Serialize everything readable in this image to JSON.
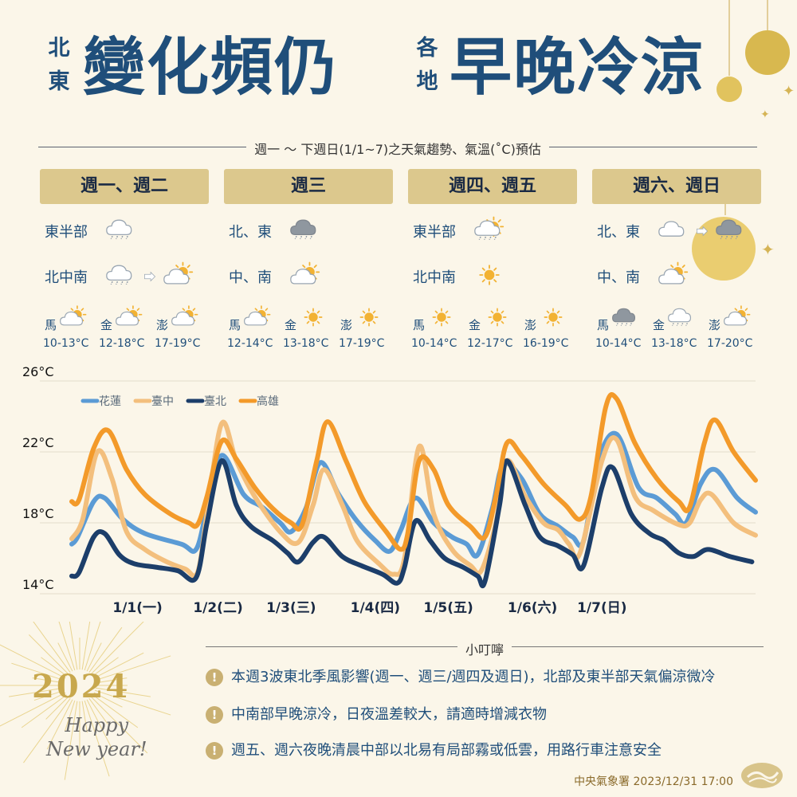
{
  "title": {
    "left_small_1": "北",
    "left_small_2": "東",
    "left_big": "變化頻仍",
    "right_small_1": "各",
    "right_small_2": "地",
    "right_big": "早晚冷涼"
  },
  "subtitle": "週一 ～ 下週日(1/1~7)之天氣趨勢、氣溫(˚C)預估",
  "days": [
    {
      "header": "週一、週二",
      "regions": [
        {
          "label": "東半部",
          "icons": [
            "rain-cloud-icon"
          ]
        },
        {
          "label": "北中南",
          "icons": [
            "rain-cloud-icon",
            "arrow-right-icon",
            "partly-sunny-icon"
          ]
        }
      ],
      "islands": [
        {
          "name": "馬",
          "icon": "partly-sunny-icon",
          "range": "10-13°C"
        },
        {
          "name": "金",
          "icon": "partly-sunny-icon",
          "range": "12-18°C"
        },
        {
          "name": "澎",
          "icon": "partly-sunny-icon",
          "range": "17-19°C"
        }
      ]
    },
    {
      "header": "週三",
      "regions": [
        {
          "label": "北、東",
          "icons": [
            "dark-rain-cloud-icon"
          ]
        },
        {
          "label": "中、南",
          "icons": [
            "partly-sunny-icon"
          ]
        }
      ],
      "islands": [
        {
          "name": "馬",
          "icon": "partly-sunny-icon",
          "range": "12-14°C"
        },
        {
          "name": "金",
          "icon": "sunny-icon",
          "range": "13-18°C"
        },
        {
          "name": "澎",
          "icon": "sunny-icon",
          "range": "17-19°C"
        }
      ]
    },
    {
      "header": "週四、週五",
      "regions": [
        {
          "label": "東半部",
          "icons": [
            "sun-rain-icon"
          ]
        },
        {
          "label": "北中南",
          "icons": [
            "sunny-icon"
          ]
        }
      ],
      "islands": [
        {
          "name": "馬",
          "icon": "sunny-icon",
          "range": "10-14°C"
        },
        {
          "name": "金",
          "icon": "sunny-icon",
          "range": "12-17°C"
        },
        {
          "name": "澎",
          "icon": "sunny-icon",
          "range": "16-19°C"
        }
      ]
    },
    {
      "header": "週六、週日",
      "regions": [
        {
          "label": "北、東",
          "icons": [
            "cloud-icon",
            "arrow-right-icon",
            "dark-rain-cloud-icon"
          ]
        },
        {
          "label": "中、南",
          "icons": [
            "partly-sunny-icon"
          ]
        }
      ],
      "islands": [
        {
          "name": "馬",
          "icon": "dark-rain-cloud-icon",
          "range": "10-14°C"
        },
        {
          "name": "金",
          "icon": "rain-cloud-icon",
          "range": "13-18°C"
        },
        {
          "name": "澎",
          "icon": "partly-sunny-icon",
          "range": "17-20°C"
        }
      ]
    }
  ],
  "chart_data": {
    "type": "line",
    "ylim": [
      14,
      26
    ],
    "yticks": [
      "26°C",
      "22°C",
      "18°C",
      "14°C"
    ],
    "ytick_values": [
      26,
      22,
      18,
      14
    ],
    "categories": [
      "1/1(一)",
      "1/2(二)",
      "1/3(三)",
      "1/4(四)",
      "1/5(五)",
      "1/6(六)",
      "1/7(日)"
    ],
    "category_x": [
      0.9,
      2.0,
      3.0,
      4.15,
      5.15,
      6.3,
      7.25
    ],
    "legend_placement": "top-left",
    "grid": true,
    "series": [
      {
        "name": "花蓮",
        "color": "#5b9bd5",
        "points": [
          [
            0,
            16.8
          ],
          [
            0.08,
            17.2
          ],
          [
            0.3,
            19.2
          ],
          [
            0.45,
            19.4
          ],
          [
            0.7,
            18.2
          ],
          [
            1.0,
            17.4
          ],
          [
            1.5,
            16.8
          ],
          [
            1.7,
            16.5
          ],
          [
            1.85,
            18.8
          ],
          [
            2.05,
            21.8
          ],
          [
            2.35,
            19.6
          ],
          [
            2.6,
            18.9
          ],
          [
            2.85,
            18.0
          ],
          [
            3.0,
            17.5
          ],
          [
            3.2,
            18.8
          ],
          [
            3.4,
            21.4
          ],
          [
            3.65,
            19.6
          ],
          [
            3.9,
            18.1
          ],
          [
            4.15,
            17.0
          ],
          [
            4.35,
            16.4
          ],
          [
            4.5,
            17.6
          ],
          [
            4.7,
            19.4
          ],
          [
            4.95,
            18.0
          ],
          [
            5.2,
            17.2
          ],
          [
            5.4,
            16.8
          ],
          [
            5.55,
            16.2
          ],
          [
            5.75,
            18.8
          ],
          [
            5.9,
            21.3
          ],
          [
            6.15,
            20.5
          ],
          [
            6.4,
            18.5
          ],
          [
            6.65,
            17.8
          ],
          [
            6.85,
            17.2
          ],
          [
            7.0,
            17.0
          ],
          [
            7.2,
            21.5
          ],
          [
            7.45,
            23.0
          ],
          [
            7.75,
            20.0
          ],
          [
            8.0,
            19.4
          ],
          [
            8.25,
            18.5
          ],
          [
            8.4,
            18.0
          ],
          [
            8.6,
            20.2
          ],
          [
            8.8,
            21.0
          ],
          [
            9.1,
            19.4
          ],
          [
            9.35,
            18.6
          ]
        ]
      },
      {
        "name": "臺中",
        "color": "#f3bf7d",
        "points": [
          [
            0,
            17.1
          ],
          [
            0.15,
            18.2
          ],
          [
            0.35,
            22.0
          ],
          [
            0.55,
            20.5
          ],
          [
            0.75,
            17.5
          ],
          [
            1.0,
            16.5
          ],
          [
            1.3,
            15.8
          ],
          [
            1.55,
            15.4
          ],
          [
            1.72,
            15.2
          ],
          [
            1.85,
            18.5
          ],
          [
            2.05,
            23.6
          ],
          [
            2.25,
            21.5
          ],
          [
            2.5,
            19.5
          ],
          [
            2.85,
            17.5
          ],
          [
            3.1,
            16.9
          ],
          [
            3.3,
            19.0
          ],
          [
            3.45,
            21.0
          ],
          [
            3.7,
            19.0
          ],
          [
            3.9,
            17.0
          ],
          [
            4.2,
            15.7
          ],
          [
            4.4,
            15.1
          ],
          [
            4.55,
            16.0
          ],
          [
            4.75,
            22.3
          ],
          [
            4.95,
            18.5
          ],
          [
            5.2,
            16.5
          ],
          [
            5.45,
            15.6
          ],
          [
            5.6,
            15.3
          ],
          [
            5.8,
            18.0
          ],
          [
            5.95,
            21.5
          ],
          [
            6.2,
            19.5
          ],
          [
            6.45,
            18.0
          ],
          [
            6.65,
            17.6
          ],
          [
            6.8,
            16.8
          ],
          [
            6.95,
            16.3
          ],
          [
            7.25,
            21.5
          ],
          [
            7.45,
            22.7
          ],
          [
            7.7,
            19.5
          ],
          [
            7.95,
            18.7
          ],
          [
            8.3,
            17.9
          ],
          [
            8.45,
            18.0
          ],
          [
            8.6,
            19.3
          ],
          [
            8.75,
            19.6
          ],
          [
            9.05,
            18.0
          ],
          [
            9.35,
            17.3
          ]
        ]
      },
      {
        "name": "臺北",
        "color": "#1c3e6a",
        "points": [
          [
            0,
            15.0
          ],
          [
            0.1,
            15.2
          ],
          [
            0.3,
            17.2
          ],
          [
            0.45,
            17.4
          ],
          [
            0.65,
            16.2
          ],
          [
            0.85,
            15.7
          ],
          [
            1.15,
            15.5
          ],
          [
            1.45,
            15.3
          ],
          [
            1.7,
            14.9
          ],
          [
            1.85,
            18.0
          ],
          [
            2.05,
            21.5
          ],
          [
            2.25,
            19.0
          ],
          [
            2.45,
            17.8
          ],
          [
            2.75,
            17.0
          ],
          [
            2.95,
            16.3
          ],
          [
            3.1,
            15.8
          ],
          [
            3.3,
            16.9
          ],
          [
            3.45,
            17.2
          ],
          [
            3.7,
            16.1
          ],
          [
            3.95,
            15.6
          ],
          [
            4.25,
            15.1
          ],
          [
            4.45,
            14.6
          ],
          [
            4.55,
            15.5
          ],
          [
            4.7,
            18.1
          ],
          [
            4.9,
            17.0
          ],
          [
            5.1,
            16.0
          ],
          [
            5.35,
            15.5
          ],
          [
            5.55,
            15.0
          ],
          [
            5.65,
            14.7
          ],
          [
            5.85,
            19.0
          ],
          [
            5.95,
            21.5
          ],
          [
            6.2,
            19.0
          ],
          [
            6.4,
            17.2
          ],
          [
            6.65,
            16.7
          ],
          [
            6.85,
            16.2
          ],
          [
            7.0,
            15.6
          ],
          [
            7.25,
            20.0
          ],
          [
            7.4,
            21.1
          ],
          [
            7.65,
            18.5
          ],
          [
            7.9,
            17.4
          ],
          [
            8.1,
            17.0
          ],
          [
            8.3,
            16.3
          ],
          [
            8.5,
            16.1
          ],
          [
            8.7,
            16.5
          ],
          [
            9.0,
            16.1
          ],
          [
            9.3,
            15.8
          ]
        ]
      },
      {
        "name": "高雄",
        "color": "#f39a2a",
        "points": [
          [
            0,
            19.2
          ],
          [
            0.1,
            19.3
          ],
          [
            0.3,
            22.2
          ],
          [
            0.5,
            23.2
          ],
          [
            0.75,
            21.0
          ],
          [
            1.0,
            19.6
          ],
          [
            1.35,
            18.5
          ],
          [
            1.6,
            18.0
          ],
          [
            1.72,
            17.9
          ],
          [
            1.85,
            19.5
          ],
          [
            2.05,
            22.6
          ],
          [
            2.25,
            21.6
          ],
          [
            2.5,
            20.0
          ],
          [
            2.75,
            18.8
          ],
          [
            3.0,
            18.0
          ],
          [
            3.15,
            17.9
          ],
          [
            3.35,
            21.5
          ],
          [
            3.5,
            23.7
          ],
          [
            3.75,
            21.5
          ],
          [
            4.0,
            19.2
          ],
          [
            4.3,
            17.5
          ],
          [
            4.5,
            16.5
          ],
          [
            4.6,
            17.5
          ],
          [
            4.75,
            21.5
          ],
          [
            4.95,
            21.0
          ],
          [
            5.15,
            19.0
          ],
          [
            5.45,
            17.8
          ],
          [
            5.65,
            17.2
          ],
          [
            5.8,
            19.5
          ],
          [
            5.95,
            22.5
          ],
          [
            6.15,
            21.8
          ],
          [
            6.45,
            20.2
          ],
          [
            6.75,
            19.0
          ],
          [
            6.95,
            18.2
          ],
          [
            7.1,
            19.5
          ],
          [
            7.3,
            24.5
          ],
          [
            7.45,
            25.0
          ],
          [
            7.7,
            22.5
          ],
          [
            8.0,
            20.5
          ],
          [
            8.3,
            19.2
          ],
          [
            8.45,
            18.9
          ],
          [
            8.65,
            22.5
          ],
          [
            8.8,
            23.8
          ],
          [
            9.05,
            22.0
          ],
          [
            9.35,
            20.4
          ]
        ]
      }
    ]
  },
  "tips": {
    "title": "小叮嚀",
    "items": [
      "本週3波東北季風影響(週一、週三/週四及週日)，北部及東半部天氣偏涼微冷",
      "中南部早晚涼冷，日夜溫差較大，請適時增減衣物",
      "週五、週六夜晚清晨中部以北易有局部霧或低雲，用路行車注意安全"
    ]
  },
  "decor": {
    "year": "2024",
    "greeting_1": "Happy",
    "greeting_2": "New year!"
  },
  "footer": "中央氣象署  2023/12/31 17:00"
}
